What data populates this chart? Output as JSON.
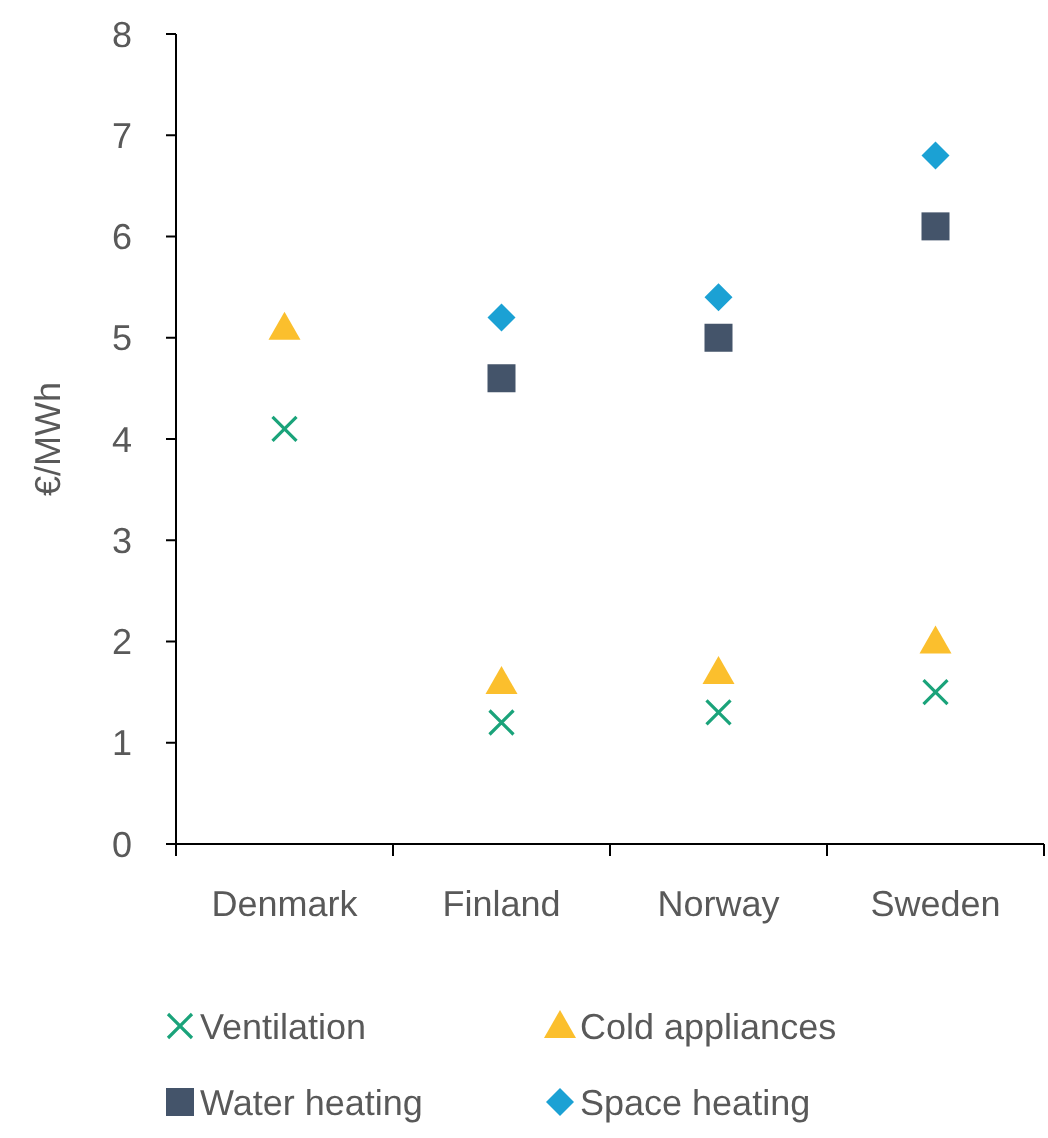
{
  "chart_data": {
    "type": "scatter",
    "ylabel": "€/MWh",
    "categories": [
      "Denmark",
      "Finland",
      "Norway",
      "Sweden"
    ],
    "ylim": [
      0,
      8
    ],
    "yticks": [
      0,
      1,
      2,
      3,
      4,
      5,
      6,
      7,
      8
    ],
    "grid": false,
    "legend": "bottom",
    "series": [
      {
        "name": "Ventilation",
        "color": "#1aa37a",
        "marker": "cross",
        "values": [
          4.1,
          1.2,
          1.3,
          1.5
        ]
      },
      {
        "name": "Cold appliances",
        "color": "#fbbf2d",
        "marker": "triangle",
        "values": [
          5.1,
          1.6,
          1.7,
          2.0
        ]
      },
      {
        "name": "Water heating",
        "color": "#44546a",
        "marker": "square",
        "values": [
          null,
          4.6,
          5.0,
          6.1
        ]
      },
      {
        "name": "Space heating",
        "color": "#1ba1d4",
        "marker": "diamond",
        "values": [
          null,
          5.2,
          5.4,
          6.8
        ]
      }
    ]
  }
}
